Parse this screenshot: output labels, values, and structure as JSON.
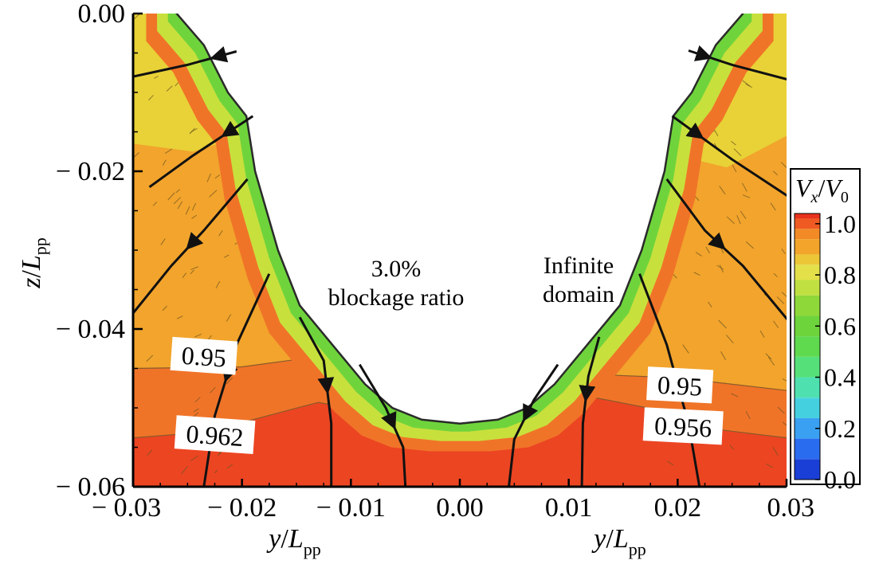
{
  "chart_data": {
    "type": "contour",
    "title": "",
    "xlabel": {
      "var": "y",
      "sub": "pp",
      "text": "y/L_pp"
    },
    "ylabel": {
      "var": "z",
      "sub": "pp",
      "text": "z/L_pp"
    },
    "xlim": [
      -0.03,
      0.03
    ],
    "ylim": [
      -0.06,
      0.0
    ],
    "x_ticks": [
      "− 0.03",
      "− 0.02",
      "− 0.01",
      "0.00",
      "0.01",
      "0.02",
      "0.03"
    ],
    "x_tick_values": [
      -0.03,
      -0.02,
      -0.01,
      0.0,
      0.01,
      0.02,
      0.03
    ],
    "y_ticks": [
      "0.00",
      "− 0.02",
      "− 0.04",
      "− 0.06"
    ],
    "y_tick_values": [
      0.0,
      -0.02,
      -0.04,
      -0.06
    ],
    "panels": [
      {
        "side": "left",
        "title_line1": "3.0%",
        "title_line2": "blockage ratio"
      },
      {
        "side": "right",
        "title_line1": "Infinite",
        "title_line2": "domain"
      }
    ],
    "contour_labels": [
      {
        "text": "0.95",
        "x": -0.0235,
        "y": -0.0435
      },
      {
        "text": "0.962",
        "x": -0.0225,
        "y": -0.0535
      },
      {
        "text": "0.95",
        "x": 0.0202,
        "y": -0.0472
      },
      {
        "text": "0.956",
        "x": 0.0205,
        "y": -0.0524
      }
    ],
    "colorbar": {
      "label": {
        "num_var": "V",
        "num_sub": "x",
        "den_var": "V",
        "den_sub": "0"
      },
      "ticks": [
        "1.0",
        "0.8",
        "0.6",
        "0.4",
        "0.2",
        "0.0"
      ],
      "tick_values": [
        1.0,
        0.8,
        0.6,
        0.4,
        0.2,
        0.0
      ],
      "range": [
        0.0,
        1.04
      ],
      "levels": [
        {
          "value": 0.0,
          "color": "#1a3fd6"
        },
        {
          "value": 0.08,
          "color": "#2a6cf0"
        },
        {
          "value": 0.16,
          "color": "#3aa0f2"
        },
        {
          "value": 0.24,
          "color": "#45d0e0"
        },
        {
          "value": 0.32,
          "color": "#4fe0b0"
        },
        {
          "value": 0.4,
          "color": "#56e07a"
        },
        {
          "value": 0.48,
          "color": "#5fda4f"
        },
        {
          "value": 0.56,
          "color": "#6ed43b"
        },
        {
          "value": 0.64,
          "color": "#8fd83a"
        },
        {
          "value": 0.72,
          "color": "#bfe040"
        },
        {
          "value": 0.78,
          "color": "#e3e04a"
        },
        {
          "value": 0.84,
          "color": "#ecc636"
        },
        {
          "value": 0.88,
          "color": "#f2a52a"
        },
        {
          "value": 0.94,
          "color": "#f28a26"
        },
        {
          "value": 0.98,
          "color": "#ef5a22"
        },
        {
          "value": 1.02,
          "color": "#e8321c"
        }
      ]
    },
    "field_colors": {
      "band_090": "#e8d237",
      "band_085": "#f2a42c",
      "band_095": "#f07428",
      "band_100": "#ec4522",
      "hull_edge": "#2a2a2a",
      "rim_green": "#6fd43c",
      "rim_yellow": "#c8e03c"
    },
    "hull_profile": [
      {
        "z": 0.0,
        "y": 0.026
      },
      {
        "z": -0.004,
        "y": 0.0235
      },
      {
        "z": -0.01,
        "y": 0.0213
      },
      {
        "z": -0.013,
        "y": 0.0196
      },
      {
        "z": -0.02,
        "y": 0.0188
      },
      {
        "z": -0.03,
        "y": 0.0167
      },
      {
        "z": -0.037,
        "y": 0.0147
      },
      {
        "z": -0.042,
        "y": 0.0117
      },
      {
        "z": -0.047,
        "y": 0.0087
      },
      {
        "z": -0.05,
        "y": 0.0062
      },
      {
        "z": -0.0515,
        "y": 0.0035
      },
      {
        "z": -0.052,
        "y": 0.0
      }
    ],
    "streamlines_left": [
      [
        [
          -0.03,
          -0.008
        ],
        [
          -0.025,
          -0.0065
        ],
        [
          -0.0205,
          -0.0048
        ]
      ],
      [
        [
          -0.0285,
          -0.022
        ],
        [
          -0.0245,
          -0.018
        ],
        [
          -0.019,
          -0.013
        ]
      ],
      [
        [
          -0.03,
          -0.038
        ],
        [
          -0.0265,
          -0.032
        ],
        [
          -0.0235,
          -0.0275
        ],
        [
          -0.0195,
          -0.021
        ]
      ],
      [
        [
          -0.0235,
          -0.06
        ],
        [
          -0.0225,
          -0.051
        ],
        [
          -0.0205,
          -0.042
        ],
        [
          -0.0175,
          -0.033
        ]
      ],
      [
        [
          -0.0118,
          -0.06
        ],
        [
          -0.0118,
          -0.052
        ],
        [
          -0.0125,
          -0.044
        ],
        [
          -0.0147,
          -0.0385
        ]
      ],
      [
        [
          -0.005,
          -0.06
        ],
        [
          -0.0052,
          -0.055
        ],
        [
          -0.0068,
          -0.05
        ],
        [
          -0.0092,
          -0.0445
        ]
      ]
    ],
    "streamlines_right": [
      [
        [
          0.0305,
          -0.0085
        ],
        [
          0.025,
          -0.0065
        ],
        [
          0.021,
          -0.0047
        ]
      ],
      [
        [
          0.0305,
          -0.0235
        ],
        [
          0.025,
          -0.0185
        ],
        [
          0.0195,
          -0.013
        ]
      ],
      [
        [
          0.0305,
          -0.0395
        ],
        [
          0.026,
          -0.032
        ],
        [
          0.0225,
          -0.0275
        ],
        [
          0.019,
          -0.021
        ]
      ],
      [
        [
          0.022,
          -0.06
        ],
        [
          0.021,
          -0.052
        ],
        [
          0.019,
          -0.042
        ],
        [
          0.0165,
          -0.033
        ]
      ],
      [
        [
          0.0112,
          -0.06
        ],
        [
          0.0113,
          -0.052
        ],
        [
          0.0118,
          -0.046
        ],
        [
          0.0128,
          -0.041
        ]
      ],
      [
        [
          0.0045,
          -0.06
        ],
        [
          0.005,
          -0.054
        ],
        [
          0.0068,
          -0.049
        ],
        [
          0.009,
          -0.0445
        ]
      ]
    ]
  }
}
